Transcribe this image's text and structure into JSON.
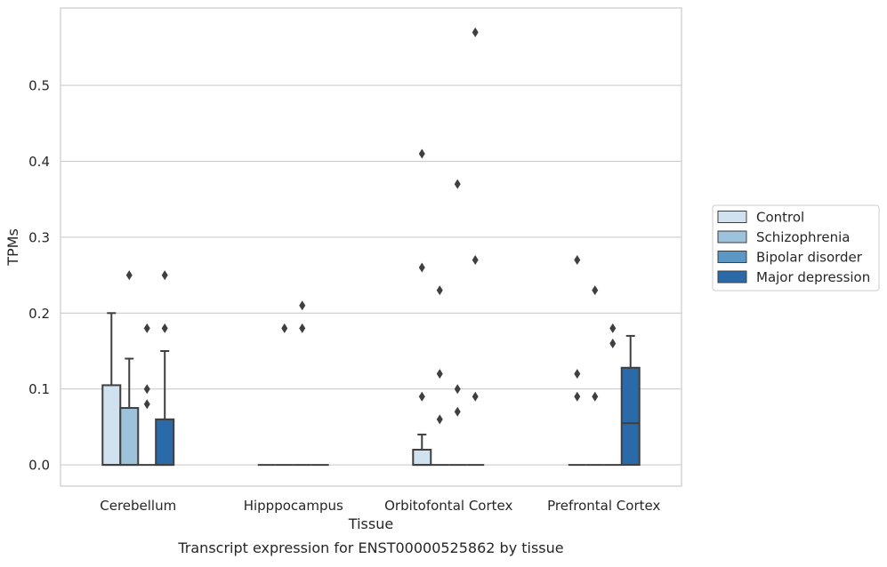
{
  "chart_data": {
    "type": "boxplot",
    "caption": "Transcript expression for ENST00000525862 by tissue",
    "xlabel": "Tissue",
    "ylabel": "TPMs",
    "ylim": [
      -0.028,
      0.602
    ],
    "yticks": [
      0.0,
      0.1,
      0.2,
      0.3,
      0.4,
      0.5
    ],
    "ytick_labels": [
      "0.0",
      "0.1",
      "0.2",
      "0.3",
      "0.4",
      "0.5"
    ],
    "grid": "horizontal",
    "legend_position": "right",
    "categories": [
      "Cerebellum",
      "Hipppocampus",
      "Orbitofontal Cortex",
      "Prefrontal Cortex"
    ],
    "series": [
      {
        "name": "Control",
        "color": "#d0e1f0",
        "boxes": [
          {
            "q1": 0.0,
            "median": 0.0,
            "q3": 0.105,
            "whisker_low": 0.0,
            "whisker_high": 0.2,
            "outliers": []
          },
          {
            "q1": 0.0,
            "median": 0.0,
            "q3": 0.0,
            "whisker_low": 0.0,
            "whisker_high": 0.0,
            "outliers": []
          },
          {
            "q1": 0.0,
            "median": 0.0,
            "q3": 0.02,
            "whisker_low": 0.0,
            "whisker_high": 0.04,
            "outliers": [
              0.09,
              0.26,
              0.41
            ]
          },
          {
            "q1": 0.0,
            "median": 0.0,
            "q3": 0.0,
            "whisker_low": 0.0,
            "whisker_high": 0.0,
            "outliers": [
              0.09,
              0.12,
              0.27
            ]
          }
        ]
      },
      {
        "name": "Schizophrenia",
        "color": "#9dc2db",
        "boxes": [
          {
            "q1": 0.0,
            "median": 0.0,
            "q3": 0.075,
            "whisker_low": 0.0,
            "whisker_high": 0.14,
            "outliers": [
              0.25
            ]
          },
          {
            "q1": 0.0,
            "median": 0.0,
            "q3": 0.0,
            "whisker_low": 0.0,
            "whisker_high": 0.0,
            "outliers": [
              0.18
            ]
          },
          {
            "q1": 0.0,
            "median": 0.0,
            "q3": 0.0,
            "whisker_low": 0.0,
            "whisker_high": 0.0,
            "outliers": [
              0.06,
              0.12,
              0.23
            ]
          },
          {
            "q1": 0.0,
            "median": 0.0,
            "q3": 0.0,
            "whisker_low": 0.0,
            "whisker_high": 0.0,
            "outliers": [
              0.09,
              0.23
            ]
          }
        ]
      },
      {
        "name": "Bipolar disorder",
        "color": "#5b97c5",
        "boxes": [
          {
            "q1": 0.0,
            "median": 0.0,
            "q3": 0.0,
            "whisker_low": 0.0,
            "whisker_high": 0.0,
            "outliers": [
              0.08,
              0.1,
              0.18
            ]
          },
          {
            "q1": 0.0,
            "median": 0.0,
            "q3": 0.0,
            "whisker_low": 0.0,
            "whisker_high": 0.0,
            "outliers": [
              0.18,
              0.21
            ]
          },
          {
            "q1": 0.0,
            "median": 0.0,
            "q3": 0.0,
            "whisker_low": 0.0,
            "whisker_high": 0.0,
            "outliers": [
              0.07,
              0.1,
              0.37
            ]
          },
          {
            "q1": 0.0,
            "median": 0.0,
            "q3": 0.0,
            "whisker_low": 0.0,
            "whisker_high": 0.0,
            "outliers": [
              0.16,
              0.18
            ]
          }
        ]
      },
      {
        "name": "Major depression",
        "color": "#2a6aa8",
        "boxes": [
          {
            "q1": 0.0,
            "median": 0.0,
            "q3": 0.06,
            "whisker_low": 0.0,
            "whisker_high": 0.15,
            "outliers": [
              0.18,
              0.25
            ]
          },
          {
            "q1": 0.0,
            "median": 0.0,
            "q3": 0.0,
            "whisker_low": 0.0,
            "whisker_high": 0.0,
            "outliers": []
          },
          {
            "q1": 0.0,
            "median": 0.0,
            "q3": 0.0,
            "whisker_low": 0.0,
            "whisker_high": 0.0,
            "outliers": [
              0.09,
              0.27,
              0.57
            ]
          },
          {
            "q1": 0.0,
            "median": 0.055,
            "q3": 0.128,
            "whisker_low": 0.0,
            "whisker_high": 0.17,
            "outliers": []
          }
        ]
      }
    ]
  }
}
